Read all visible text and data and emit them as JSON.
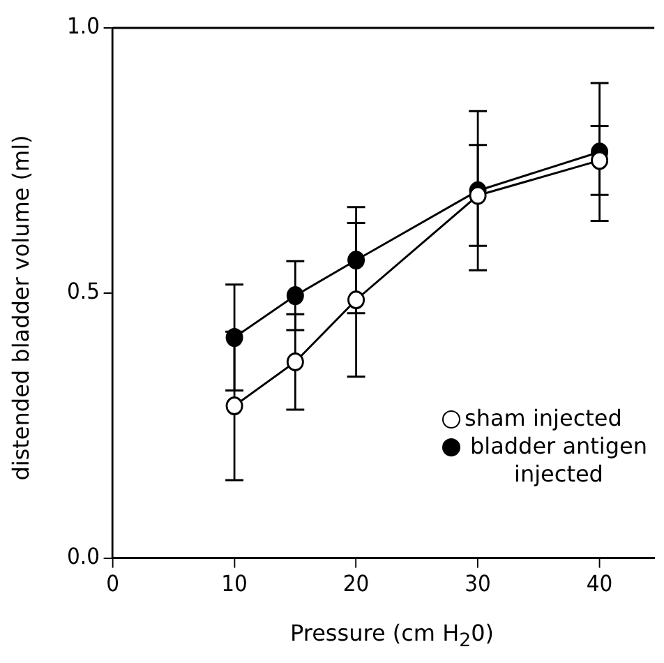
{
  "chart_data": {
    "type": "line",
    "xlabel": "Pressure (cm H$_{2}$0)",
    "ylabel": "distended bladder volume (ml)",
    "xlim": [
      0,
      44.5
    ],
    "xticks": [
      0,
      10,
      20,
      30,
      40
    ],
    "ylim": [
      0,
      1
    ],
    "yticks": [
      {
        "value": 0,
        "label": "0.0"
      },
      {
        "value": 0.5,
        "label": "0.5"
      },
      {
        "value": 1,
        "label": "1.0"
      }
    ],
    "marker": "circle",
    "legend": "bottom right",
    "grid": false,
    "series": [
      {
        "name": "sham injected",
        "color": "#000000",
        "x": [
          10,
          15,
          20,
          30,
          40
        ],
        "values": [
          0.287,
          0.37,
          0.487,
          0.684,
          0.75
        ],
        "errors": [
          0.14,
          0.09,
          0.145,
          0.095,
          0.065
        ]
      },
      {
        "name": "bladder antigen injected",
        "color": "#000000",
        "x": [
          10,
          15,
          20,
          30,
          40
        ],
        "values": [
          0.416,
          0.495,
          0.562,
          0.693,
          0.766
        ],
        "errors": [
          0.1,
          0.065,
          0.1,
          0.15,
          0.13
        ]
      }
    ]
  }
}
